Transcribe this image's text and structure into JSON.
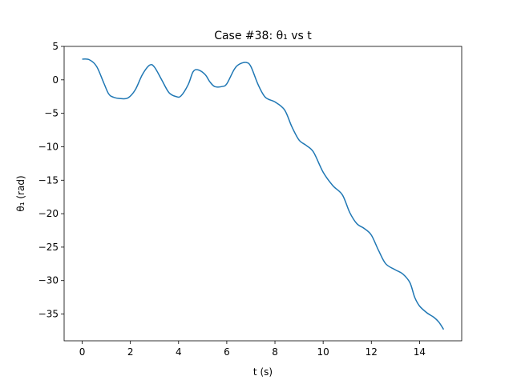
{
  "chart_data": {
    "type": "line",
    "title": "Case #38: θ₁ vs t",
    "xlabel": "t (s)",
    "ylabel": "θ₁ (rad)",
    "xlim": [
      -0.75,
      15.75
    ],
    "ylim": [
      -39.0,
      5.0
    ],
    "xticks": [
      0,
      2,
      4,
      6,
      8,
      10,
      12,
      14
    ],
    "yticks": [
      5,
      0,
      -5,
      -10,
      -15,
      -20,
      -25,
      -30,
      -35
    ],
    "grid": false,
    "colors": {
      "line": "#1f77b4"
    },
    "series": [
      {
        "x": [
          0.0,
          0.3,
          0.6,
          0.9,
          1.1,
          1.3,
          1.6,
          1.9,
          2.2,
          2.5,
          2.8,
          3.0,
          3.3,
          3.6,
          3.9,
          4.1,
          4.4,
          4.6,
          4.8,
          5.1,
          5.3,
          5.5,
          5.8,
          6.0,
          6.3,
          6.5,
          6.8,
          7.0,
          7.3,
          7.6,
          8.0,
          8.4,
          8.7,
          9.0,
          9.3,
          9.6,
          10.0,
          10.4,
          10.8,
          11.1,
          11.4,
          11.7,
          12.0,
          12.3,
          12.6,
          13.0,
          13.3,
          13.6,
          13.8,
          14.0,
          14.3,
          14.6,
          14.8,
          15.0
        ],
        "values": [
          3.1,
          3.0,
          2.0,
          -0.5,
          -2.1,
          -2.6,
          -2.8,
          -2.7,
          -1.5,
          0.8,
          2.2,
          1.9,
          0.0,
          -1.9,
          -2.5,
          -2.4,
          -0.7,
          1.2,
          1.5,
          0.8,
          -0.3,
          -1.0,
          -1.0,
          -0.6,
          1.5,
          2.3,
          2.6,
          2.0,
          -0.7,
          -2.6,
          -3.3,
          -4.5,
          -7.0,
          -9.0,
          -9.8,
          -10.8,
          -13.8,
          -15.8,
          -17.2,
          -19.8,
          -21.5,
          -22.2,
          -23.2,
          -25.5,
          -27.5,
          -28.4,
          -29.0,
          -30.3,
          -32.5,
          -33.8,
          -34.8,
          -35.5,
          -36.2,
          -37.3
        ]
      }
    ]
  }
}
